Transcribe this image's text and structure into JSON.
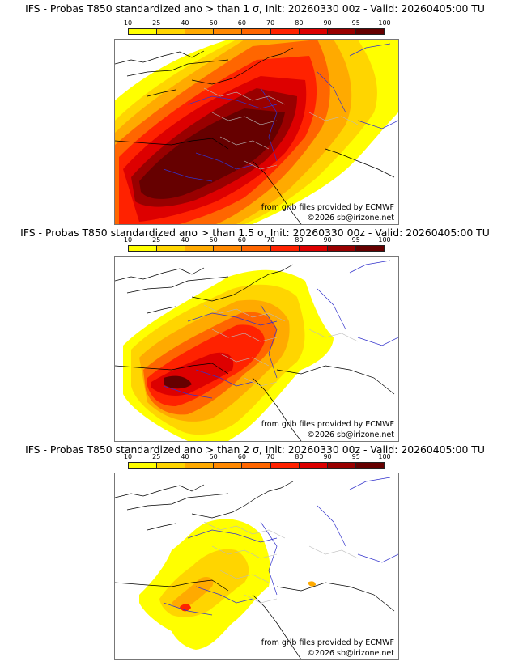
{
  "colorbar": {
    "ticks": [
      "10",
      "25",
      "40",
      "50",
      "60",
      "70",
      "80",
      "90",
      "95",
      "100"
    ],
    "colors": [
      "#ffff00",
      "#ffd500",
      "#ffaa00",
      "#ff8800",
      "#ff6600",
      "#ff2200",
      "#dd0000",
      "#990000",
      "#660000"
    ]
  },
  "panels": [
    {
      "title": "IFS - Probas T850  standardized ano > than 1 σ, Init: 20260330 00z - Valid: 20260405:00 TU",
      "credit_source": "from grib files provided by ECMWF",
      "credit_copyright": "©2026 sb@irizone.net"
    },
    {
      "title": "IFS - Probas T850  standardized ano > than 1.5 σ, Init: 20260330 00z - Valid: 20260405:00 TU",
      "credit_source": "from grib files provided by ECMWF",
      "credit_copyright": "©2026 sb@irizone.net"
    },
    {
      "title": "IFS - Probas T850  standardized ano > than 2 σ, Init: 20260330 00z - Valid: 20260405:00 TU",
      "credit_source": "from grib files provided by ECMWF",
      "credit_copyright": "©2026 sb@irizone.net"
    }
  ]
}
